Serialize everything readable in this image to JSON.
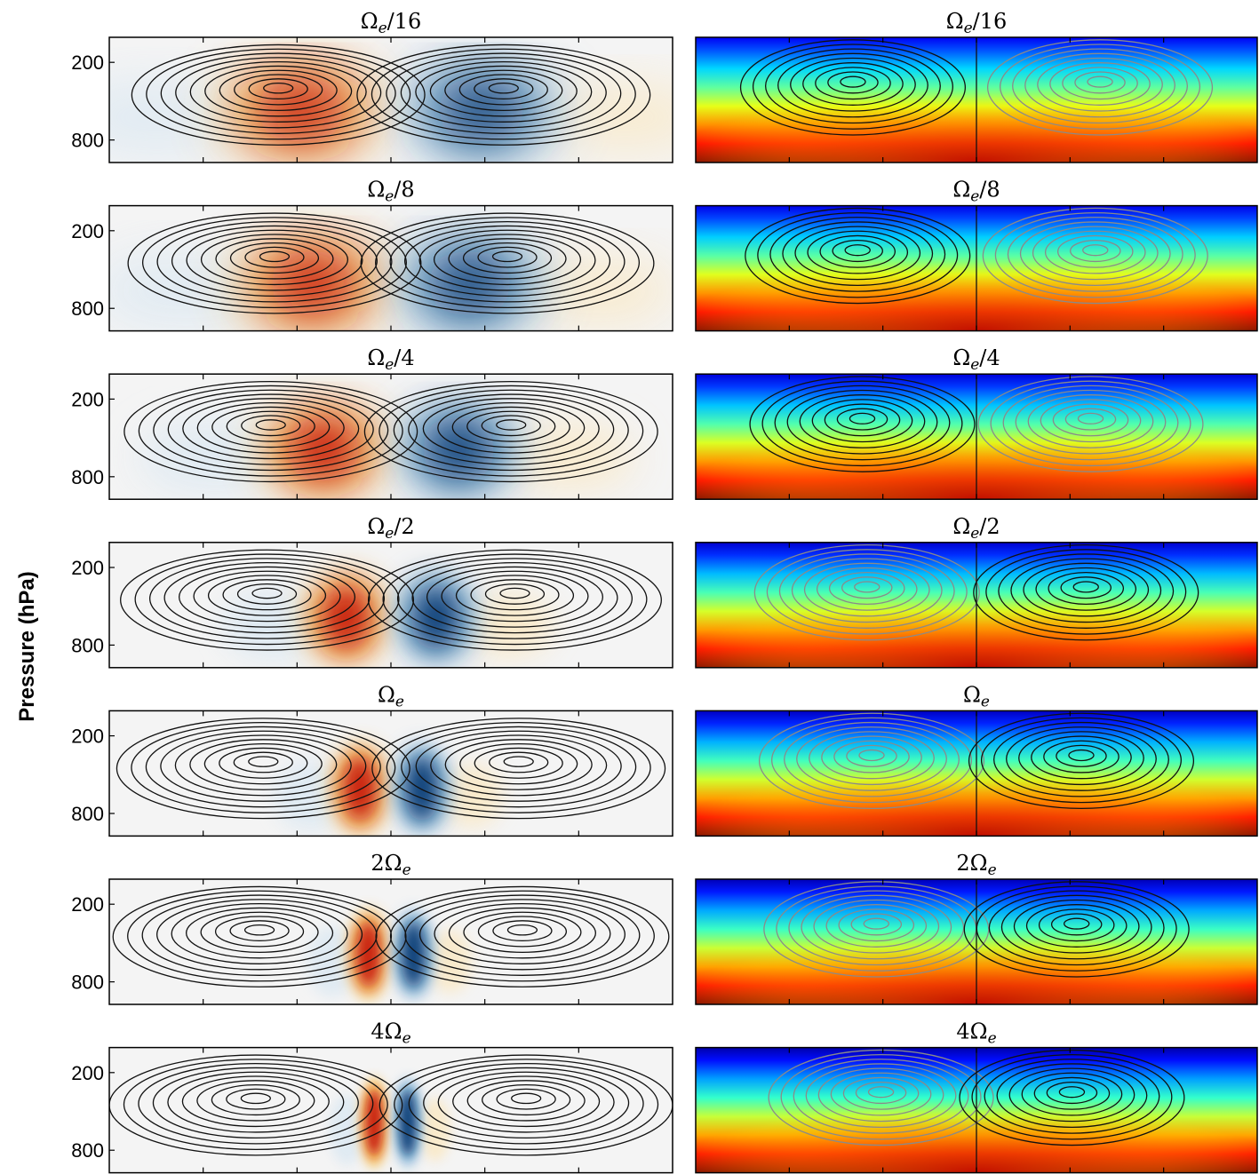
{
  "chart_data": {
    "type": "heatmap",
    "ylabel": "Pressure (hPa)",
    "y_ticks": [
      "200",
      "800"
    ],
    "y_axis": "pressure (hPa), increasing downward",
    "layout": "7 rows x 2 columns",
    "left_column": {
      "fill": "diverging blue-white-red, antisymmetric about the center",
      "contours": "black"
    },
    "right_column": {
      "fill": "jet colormap, red at bottom to blue at top",
      "contours": "black and gray"
    },
    "rows": [
      {
        "title_prefix": "",
        "title_symbol": "Ω",
        "title_sub": "e",
        "title_suffix": "/16",
        "jet_type": 0.3,
        "lobe_width": 0.19,
        "lobe_offset": 0.16,
        "lobe_depth": 0.58
      },
      {
        "title_prefix": "",
        "title_symbol": "Ω",
        "title_sub": "e",
        "title_suffix": "/8",
        "jet_type": 0.4,
        "lobe_width": 0.18,
        "lobe_offset": 0.14,
        "lobe_depth": 0.62
      },
      {
        "title_prefix": "",
        "title_symbol": "Ω",
        "title_sub": "e",
        "title_suffix": "/4",
        "jet_type": 0.5,
        "lobe_width": 0.15,
        "lobe_offset": 0.12,
        "lobe_depth": 0.6
      },
      {
        "title_prefix": "",
        "title_symbol": "Ω",
        "title_sub": "e",
        "title_suffix": "/2",
        "jet_type": 0.6,
        "lobe_width": 0.1,
        "lobe_offset": 0.08,
        "lobe_depth": 0.6
      },
      {
        "title_prefix": "",
        "title_symbol": "Ω",
        "title_sub": "e",
        "title_suffix": "",
        "jet_type": 0.7,
        "lobe_width": 0.07,
        "lobe_offset": 0.055,
        "lobe_depth": 0.62
      },
      {
        "title_prefix": "2",
        "title_symbol": "Ω",
        "title_sub": "e",
        "title_suffix": "",
        "jet_type": 0.8,
        "lobe_width": 0.05,
        "lobe_offset": 0.04,
        "lobe_depth": 0.6
      },
      {
        "title_prefix": "4",
        "title_symbol": "Ω",
        "title_sub": "e",
        "title_suffix": "",
        "jet_type": 0.9,
        "lobe_width": 0.035,
        "lobe_offset": 0.03,
        "lobe_depth": 0.6
      }
    ]
  }
}
